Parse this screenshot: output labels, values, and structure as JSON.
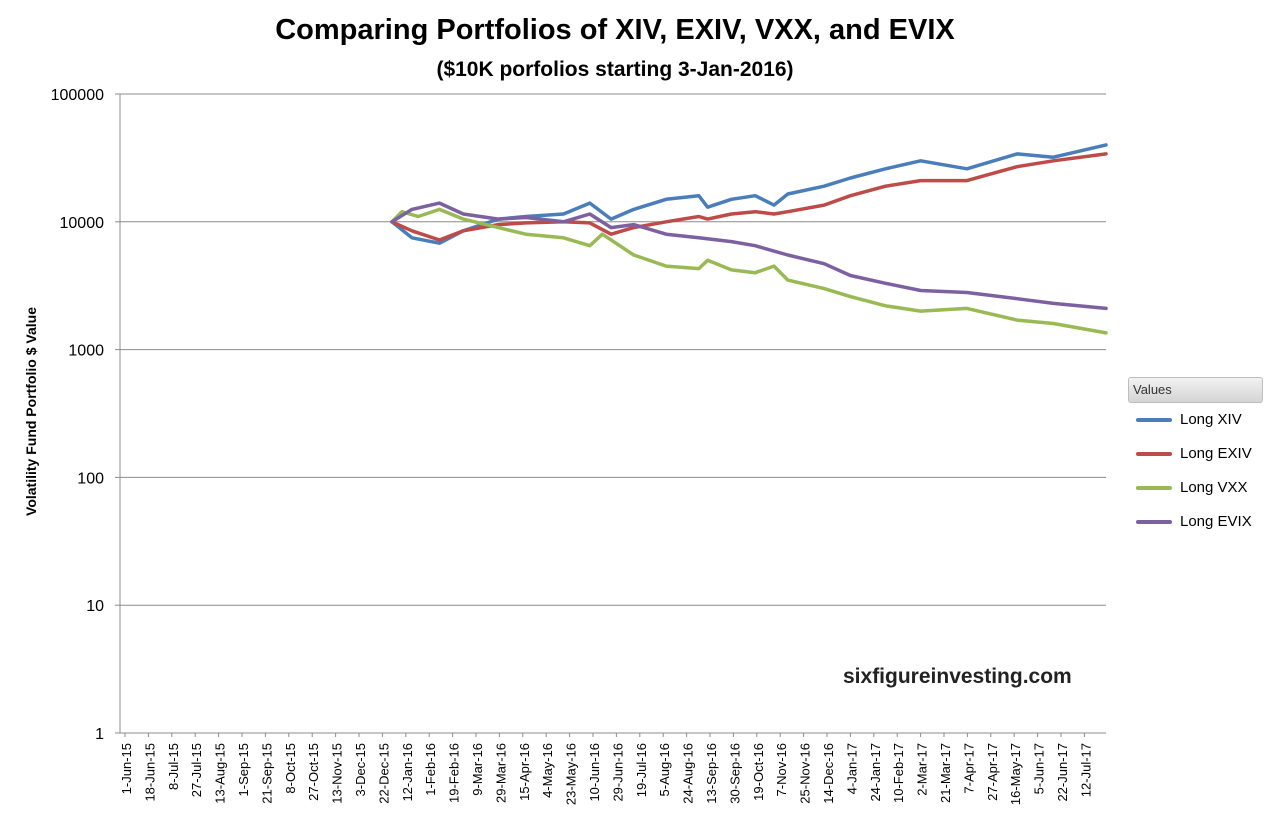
{
  "title": "Comparing Portfolios of XIV, EXIV, VXX, and EVIX",
  "subtitle": "($10K porfolios starting 3-Jan-2016)",
  "watermark": "sixfigureinvesting.com",
  "legend": {
    "header": "Values",
    "items": [
      {
        "label": "Long XIV",
        "color": "#4a7ebb"
      },
      {
        "label": "Long EXIV",
        "color": "#be4b48"
      },
      {
        "label": "Long VXX",
        "color": "#98b954"
      },
      {
        "label": "Long EVIX",
        "color": "#7d60a0"
      }
    ]
  },
  "chart_data": {
    "type": "line",
    "ylabel": "Volatility Fund Portfolio $ Value",
    "xlabel": "",
    "yscale": "log",
    "ylim": [
      1,
      100000
    ],
    "yticks": [
      1,
      10,
      100,
      1000,
      10000,
      100000
    ],
    "xlim": [
      "2015-06-01",
      "2017-07-27"
    ],
    "grid": "horizontal",
    "legend_position": "right",
    "xtick_labels": [
      "1-Jun-15",
      "18-Jun-15",
      "8-Jul-15",
      "27-Jul-15",
      "13-Aug-15",
      "1-Sep-15",
      "21-Sep-15",
      "8-Oct-15",
      "27-Oct-15",
      "13-Nov-15",
      "3-Dec-15",
      "22-Dec-15",
      "12-Jan-16",
      "1-Feb-16",
      "19-Feb-16",
      "9-Mar-16",
      "29-Mar-16",
      "15-Apr-16",
      "4-May-16",
      "23-May-16",
      "10-Jun-16",
      "29-Jun-16",
      "19-Jul-16",
      "5-Aug-16",
      "24-Aug-16",
      "13-Sep-16",
      "30-Sep-16",
      "19-Oct-16",
      "7-Nov-16",
      "25-Nov-16",
      "14-Dec-16",
      "4-Jan-17",
      "24-Jan-17",
      "10-Feb-17",
      "2-Mar-17",
      "21-Mar-17",
      "7-Apr-17",
      "27-Apr-17",
      "16-May-17",
      "5-Jun-17",
      "22-Jun-17",
      "12-Jul-17"
    ],
    "series": [
      {
        "name": "Long XIV",
        "color": "#4a7ebb",
        "x": [
          "2016-01-04",
          "2016-01-20",
          "2016-02-11",
          "2016-03-01",
          "2016-03-29",
          "2016-04-20",
          "2016-05-20",
          "2016-06-10",
          "2016-06-27",
          "2016-07-15",
          "2016-08-10",
          "2016-09-05",
          "2016-09-12",
          "2016-10-01",
          "2016-10-20",
          "2016-11-04",
          "2016-11-15",
          "2016-12-14",
          "2017-01-04",
          "2017-02-01",
          "2017-03-01",
          "2017-04-07",
          "2017-05-17",
          "2017-06-15",
          "2017-07-27"
        ],
        "y": [
          10000,
          7500,
          6800,
          8500,
          10500,
          11000,
          11500,
          14000,
          10500,
          12500,
          15000,
          16000,
          13000,
          15000,
          16000,
          13500,
          16500,
          19000,
          22000,
          26000,
          30000,
          26000,
          34000,
          32000,
          40000
        ]
      },
      {
        "name": "Long EXIV",
        "color": "#be4b48",
        "x": [
          "2016-01-04",
          "2016-01-20",
          "2016-02-11",
          "2016-03-01",
          "2016-03-29",
          "2016-04-20",
          "2016-05-20",
          "2016-06-10",
          "2016-06-27",
          "2016-07-15",
          "2016-08-10",
          "2016-09-05",
          "2016-09-12",
          "2016-10-01",
          "2016-10-20",
          "2016-11-04",
          "2016-11-15",
          "2016-12-14",
          "2017-01-04",
          "2017-02-01",
          "2017-03-01",
          "2017-04-07",
          "2017-05-17",
          "2017-06-15",
          "2017-07-27"
        ],
        "y": [
          10000,
          8500,
          7200,
          8500,
          9500,
          9800,
          10000,
          9800,
          8000,
          9000,
          10000,
          11000,
          10500,
          11500,
          12000,
          11500,
          12000,
          13500,
          16000,
          19000,
          21000,
          21000,
          27000,
          30000,
          34000
        ]
      },
      {
        "name": "Long VXX",
        "color": "#98b954",
        "x": [
          "2016-01-04",
          "2016-01-12",
          "2016-01-25",
          "2016-02-11",
          "2016-03-01",
          "2016-03-29",
          "2016-04-20",
          "2016-05-20",
          "2016-06-10",
          "2016-06-20",
          "2016-07-15",
          "2016-08-10",
          "2016-09-05",
          "2016-09-12",
          "2016-10-01",
          "2016-10-20",
          "2016-11-04",
          "2016-11-15",
          "2016-12-14",
          "2017-01-04",
          "2017-02-01",
          "2017-03-01",
          "2017-04-07",
          "2017-05-17",
          "2017-06-15",
          "2017-07-27"
        ],
        "y": [
          10000,
          12000,
          11000,
          12500,
          10500,
          9000,
          8000,
          7500,
          6500,
          8000,
          5500,
          4500,
          4300,
          5000,
          4200,
          4000,
          4500,
          3500,
          3000,
          2600,
          2200,
          2000,
          2100,
          1700,
          1600,
          1350
        ]
      },
      {
        "name": "Long EVIX",
        "color": "#7d60a0",
        "x": [
          "2016-01-04",
          "2016-01-20",
          "2016-02-11",
          "2016-03-01",
          "2016-03-29",
          "2016-04-20",
          "2016-05-20",
          "2016-06-10",
          "2016-06-27",
          "2016-07-15",
          "2016-08-10",
          "2016-09-05",
          "2016-10-01",
          "2016-10-20",
          "2016-11-15",
          "2016-12-14",
          "2017-01-04",
          "2017-02-01",
          "2017-03-01",
          "2017-04-07",
          "2017-05-17",
          "2017-06-15",
          "2017-07-27"
        ],
        "y": [
          10000,
          12500,
          14000,
          11500,
          10500,
          10800,
          10000,
          11500,
          9000,
          9500,
          8000,
          7500,
          7000,
          6500,
          5500,
          4700,
          3800,
          3300,
          2900,
          2800,
          2500,
          2300,
          2100
        ]
      }
    ]
  }
}
